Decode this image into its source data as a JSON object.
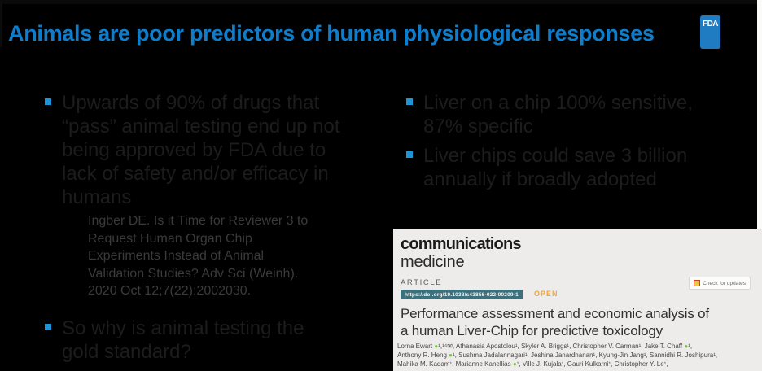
{
  "slide": {
    "title": "Animals are poor predictors of human physiological responses",
    "fda_logo_text": "FDA"
  },
  "main": {
    "left": {
      "bullet1": {
        "lines": [
          "Upwards of 90% of drugs that",
          "“pass” animal testing end up not",
          "being approved by FDA due to",
          "lack of safety and/or efficacy in",
          "humans"
        ]
      },
      "citation": {
        "lines": [
          "Ingber DE. Is it Time for Reviewer 3 to",
          "Request Human Organ Chip",
          "Experiments Instead of Animal",
          "Validation Studies? Adv Sci (Weinh).",
          "2020 Oct 12;7(22):2002030."
        ]
      },
      "bullet2": {
        "lines": [
          "So why is animal testing the",
          "gold standard?"
        ]
      }
    },
    "right": {
      "bullet1": {
        "lines": [
          "Liver on a chip 100% sensitive,",
          "87% specific"
        ]
      },
      "bullet2": {
        "lines": [
          "Liver chips could save 3 billion",
          "annually if broadly adopted"
        ]
      }
    }
  },
  "paper": {
    "journal_line1": "communications",
    "journal_line2": "medicine",
    "article_label": "ARTICLE",
    "doi": "https://doi.org/10.1038/s43856-022-00209-1",
    "open_label": "OPEN",
    "check_updates_label": "Check for updates",
    "title_lines": [
      "Performance assessment and economic analysis of",
      "a human Liver-Chip for predictive toxicology"
    ],
    "author_lines": [
      "Lorna Ewart ●¹,¹⁴✉, Athanasia Apostolou¹, Skyler A. Briggs¹, Christopher V. Carman¹, Jake T. Chaff ●¹,",
      "Anthony R. Heng ●¹, Sushma Jadalannagari¹, Jeshina Janardhanan¹, Kyung-Jin Jang¹, Sannidhi R. Joshipura¹,",
      "Mahika M. Kadam¹, Marianne Kanellias ●¹, Ville J. Kujala¹, Gauri Kulkarni¹, Christopher Y. Le¹,"
    ]
  },
  "colors": {
    "title_blue": "#0d7ecd",
    "bullet_blue": "#1e96d6",
    "fda_logo_blue": "#1f7bc2",
    "doi_chip_teal": "#3e707b",
    "open_orange": "#f0a63a",
    "orcid_green": "#7ac143"
  }
}
